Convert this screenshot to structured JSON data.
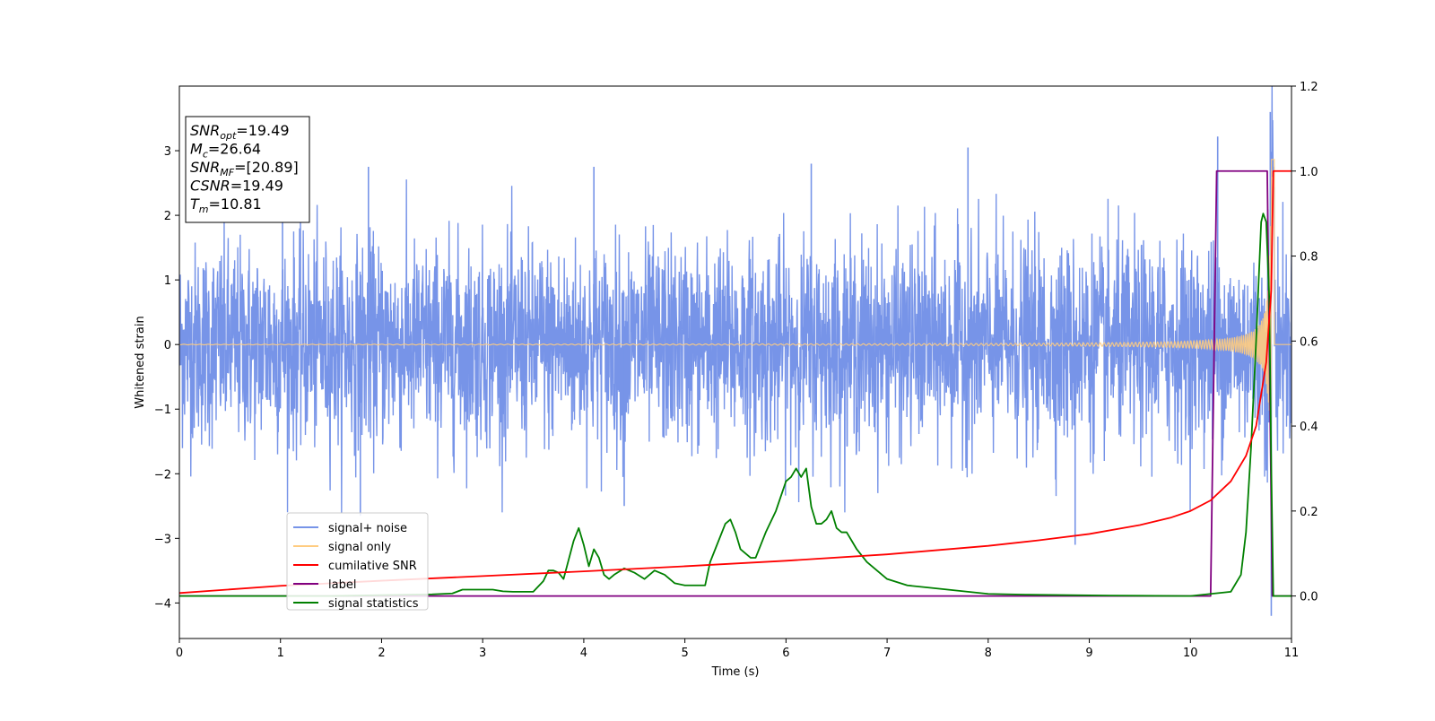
{
  "chart_data": {
    "type": "line",
    "xlabel": "Time (s)",
    "ylabel_left": "Whitened strain",
    "ylabel_right": "",
    "xlim": [
      0,
      11
    ],
    "ylim_left": [
      -4.55,
      4.0
    ],
    "ylim_right": [
      -0.1,
      1.2
    ],
    "x_ticks": [
      "0",
      "1",
      "2",
      "3",
      "4",
      "5",
      "6",
      "7",
      "8",
      "9",
      "10",
      "11"
    ],
    "y_ticks_left": [
      "−4",
      "−3",
      "−2",
      "−1",
      "0",
      "1",
      "2",
      "3"
    ],
    "y_ticks_right": [
      "0.0",
      "0.2",
      "0.4",
      "0.6",
      "0.8",
      "1.0",
      "1.2"
    ],
    "grid": false,
    "legend_position": "lower-left",
    "legend": [
      {
        "label": "signal+ noise",
        "color": "#7794e8"
      },
      {
        "label": "signal only",
        "color": "#ffcc80"
      },
      {
        "label": "cumilative SNR",
        "color": "#ff0000"
      },
      {
        "label": "label",
        "color": "#800080"
      },
      {
        "label": "signal statistics",
        "color": "#008000"
      }
    ],
    "annotation": [
      {
        "base": "SNR",
        "sub": "opt",
        "value": "=19.49"
      },
      {
        "base": "M",
        "sub": "c",
        "value": "=26.64"
      },
      {
        "base": "SNR",
        "sub": "MF",
        "value": "=[20.89]"
      },
      {
        "base": "CSNR",
        "sub": "",
        "value": "=19.49"
      },
      {
        "base": "T",
        "sub": "m",
        "value": "=10.81"
      }
    ],
    "series": [
      {
        "name": "signal+ noise",
        "axis": "left",
        "description_color": "#7794e8",
        "noise_envelope": 2.0,
        "notable_peaks": [
          [
            1.02,
            2.45
          ],
          [
            1.79,
            -2.65
          ],
          [
            1.87,
            2.75
          ],
          [
            4.1,
            2.75
          ],
          [
            4.4,
            -2.5
          ],
          [
            6.25,
            2.8
          ],
          [
            7.8,
            3.05
          ],
          [
            8.86,
            -3.1
          ],
          [
            10.27,
            3.22
          ],
          [
            10.79,
            3.6
          ],
          [
            10.8,
            -4.2
          ]
        ]
      },
      {
        "name": "signal only",
        "axis": "left",
        "description_color": "#ffcc80",
        "chirp_start_amplitude": 0.01,
        "chirp_peak_time": 10.8,
        "chirp_peak_amplitude": 2.9
      },
      {
        "name": "cumilative SNR",
        "axis": "right",
        "x": [
          0,
          1,
          2,
          3,
          4,
          5,
          6,
          7,
          8,
          8.5,
          9,
          9.5,
          9.8,
          10,
          10.2,
          10.4,
          10.55,
          10.65,
          10.75,
          10.8,
          10.82,
          11
        ],
        "y": [
          0.007,
          0.024,
          0.036,
          0.047,
          0.058,
          0.07,
          0.083,
          0.098,
          0.118,
          0.131,
          0.146,
          0.167,
          0.184,
          0.2,
          0.225,
          0.27,
          0.33,
          0.4,
          0.55,
          0.72,
          1.0,
          1.0
        ]
      },
      {
        "name": "label",
        "axis": "right",
        "x": [
          0,
          10.2,
          10.26,
          10.76,
          10.81,
          11
        ],
        "y": [
          0.0,
          0.0,
          1.0,
          1.0,
          0.0,
          0.0
        ]
      },
      {
        "name": "signal statistics",
        "axis": "right",
        "x": [
          0,
          0.5,
          1,
          1.5,
          2,
          2.5,
          2.7,
          2.8,
          3,
          3.1,
          3.2,
          3.3,
          3.5,
          3.6,
          3.65,
          3.7,
          3.75,
          3.8,
          3.9,
          3.95,
          4.0,
          4.05,
          4.1,
          4.15,
          4.2,
          4.25,
          4.3,
          4.4,
          4.5,
          4.6,
          4.7,
          4.8,
          4.9,
          5.0,
          5.1,
          5.2,
          5.25,
          5.3,
          5.4,
          5.45,
          5.5,
          5.55,
          5.6,
          5.65,
          5.7,
          5.8,
          5.9,
          6.0,
          6.05,
          6.1,
          6.15,
          6.2,
          6.25,
          6.3,
          6.35,
          6.4,
          6.45,
          6.5,
          6.55,
          6.6,
          6.65,
          6.7,
          6.8,
          6.9,
          7.0,
          7.2,
          7.4,
          7.6,
          7.8,
          8.0,
          8.4,
          8.8,
          9.2,
          10.0,
          10.4,
          10.5,
          10.55,
          10.6,
          10.65,
          10.7,
          10.72,
          10.75,
          10.78,
          10.8,
          10.82,
          10.85,
          11
        ],
        "y": [
          0.0,
          0.0,
          0.0,
          0.0,
          0.002,
          0.004,
          0.006,
          0.015,
          0.015,
          0.015,
          0.011,
          0.01,
          0.01,
          0.035,
          0.06,
          0.06,
          0.055,
          0.04,
          0.13,
          0.16,
          0.12,
          0.07,
          0.11,
          0.09,
          0.05,
          0.04,
          0.05,
          0.065,
          0.055,
          0.04,
          0.06,
          0.05,
          0.03,
          0.025,
          0.025,
          0.025,
          0.08,
          0.11,
          0.17,
          0.18,
          0.15,
          0.11,
          0.1,
          0.09,
          0.09,
          0.15,
          0.2,
          0.27,
          0.28,
          0.3,
          0.28,
          0.3,
          0.21,
          0.17,
          0.17,
          0.18,
          0.2,
          0.16,
          0.15,
          0.15,
          0.13,
          0.11,
          0.08,
          0.06,
          0.04,
          0.025,
          0.02,
          0.015,
          0.01,
          0.005,
          0.003,
          0.002,
          0.001,
          0.0,
          0.01,
          0.05,
          0.15,
          0.35,
          0.6,
          0.88,
          0.9,
          0.88,
          0.7,
          0.3,
          0.0,
          0.0,
          0.0
        ]
      }
    ]
  }
}
